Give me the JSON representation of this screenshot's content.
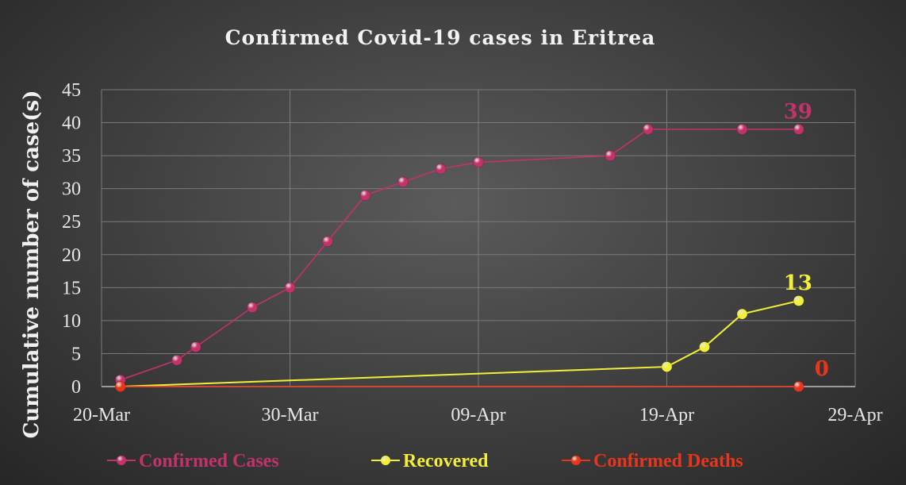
{
  "chart_data": {
    "type": "line",
    "title": "Confirmed Covid-19 cases in Eritrea",
    "ylabel": "Cumulative number of case(s)",
    "xlabel": "",
    "xlim": [
      "2020-03-20",
      "2020-04-29"
    ],
    "ylim": [
      0,
      45
    ],
    "xticks": [
      "20-Mar",
      "30-Mar",
      "09-Apr",
      "19-Apr",
      "29-Apr"
    ],
    "yticks": [
      0,
      5,
      10,
      15,
      20,
      25,
      30,
      35,
      40,
      45
    ],
    "grid": true,
    "legend_position": "bottom",
    "series": [
      {
        "name": "Confirmed Cases",
        "color": "#c2336a",
        "x": [
          "2020-03-21",
          "2020-03-24",
          "2020-03-25",
          "2020-03-28",
          "2020-03-30",
          "2020-04-01",
          "2020-04-03",
          "2020-04-05",
          "2020-04-07",
          "2020-04-09",
          "2020-04-16",
          "2020-04-18",
          "2020-04-23",
          "2020-04-26"
        ],
        "values": [
          1,
          4,
          6,
          12,
          15,
          22,
          29,
          31,
          33,
          34,
          35,
          39,
          39,
          39
        ],
        "end_label": "39"
      },
      {
        "name": "Recovered",
        "color": "#f2ee3a",
        "x": [
          "2020-03-21",
          "2020-04-19",
          "2020-04-21",
          "2020-04-23",
          "2020-04-26"
        ],
        "values": [
          0,
          3,
          6,
          11,
          13
        ],
        "end_label": "13"
      },
      {
        "name": "Confirmed Deaths",
        "color": "#e8361c",
        "x": [
          "2020-03-21",
          "2020-04-26"
        ],
        "values": [
          0,
          0
        ],
        "end_label": "0"
      }
    ]
  }
}
